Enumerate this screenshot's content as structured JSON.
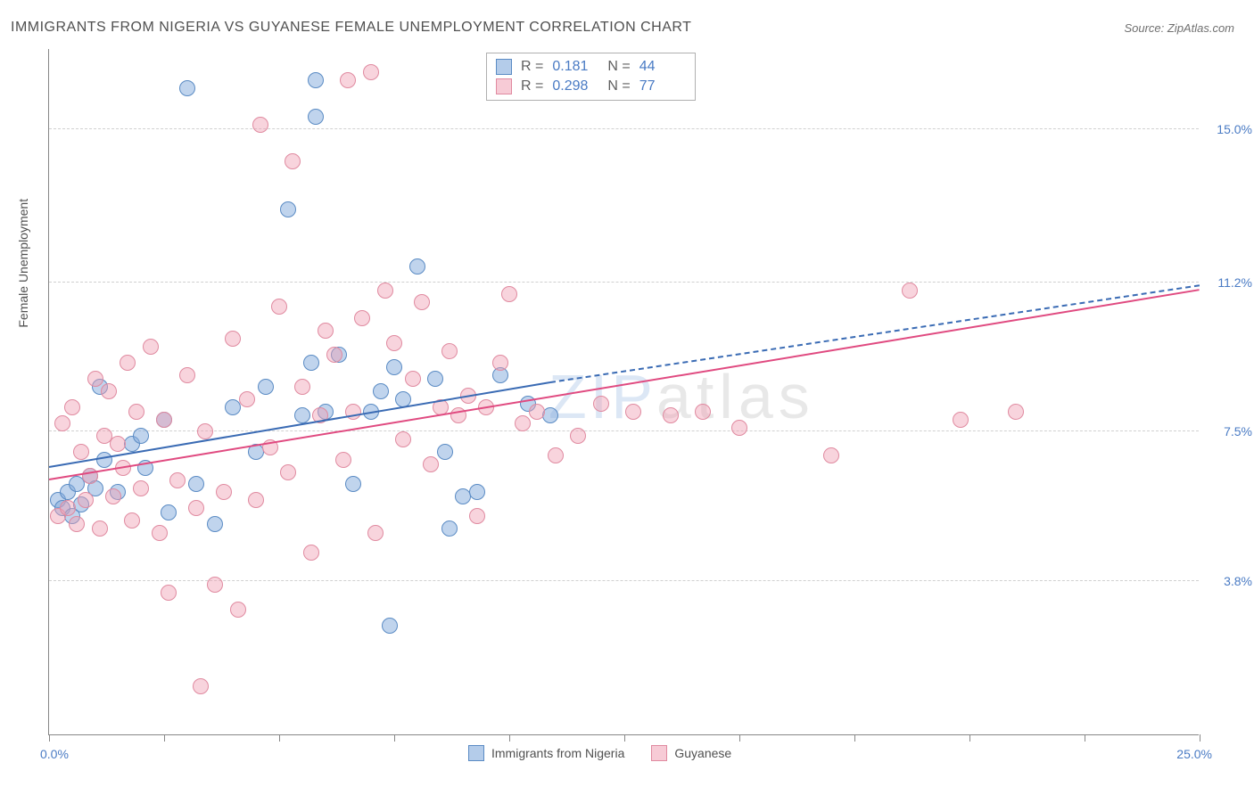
{
  "title": "IMMIGRANTS FROM NIGERIA VS GUYANESE FEMALE UNEMPLOYMENT CORRELATION CHART",
  "source": "Source: ZipAtlas.com",
  "watermark": {
    "z": "ZIP",
    "rest": "atlas"
  },
  "chart": {
    "type": "scatter",
    "background_color": "#ffffff",
    "grid_color": "#d0d0d0",
    "axis_color": "#888888",
    "label_color": "#505050",
    "value_color": "#4a7bc4",
    "ylabel": "Female Unemployment",
    "xlim": [
      0,
      25
    ],
    "ylim": [
      0,
      17
    ],
    "xtick_positions": [
      0,
      2.5,
      5,
      7.5,
      10,
      12.5,
      15,
      17.5,
      20,
      22.5,
      25
    ],
    "xtick_labels": {
      "left": "0.0%",
      "right": "25.0%"
    },
    "ytick_gridlines": [
      3.8,
      7.5,
      11.2,
      15.0
    ],
    "ytick_labels": [
      "3.8%",
      "7.5%",
      "11.2%",
      "15.0%"
    ],
    "label_fontsize": 14,
    "marker_radius": 9,
    "series": [
      {
        "name": "Immigrants from Nigeria",
        "color_fill": "rgba(130,170,220,0.5)",
        "color_stroke": "#5a8bc4",
        "trend_color": "#3a6bb4",
        "R": "0.181",
        "N": "44",
        "trend": {
          "x0": 0,
          "y0": 6.6,
          "x1": 10.9,
          "y1": 8.7,
          "x1_dash": 25,
          "y1_dash": 11.1
        },
        "points": [
          [
            0.2,
            5.8
          ],
          [
            0.3,
            5.6
          ],
          [
            0.4,
            6.0
          ],
          [
            0.5,
            5.4
          ],
          [
            0.6,
            6.2
          ],
          [
            0.7,
            5.7
          ],
          [
            0.9,
            6.4
          ],
          [
            1.0,
            6.1
          ],
          [
            1.1,
            8.6
          ],
          [
            1.2,
            6.8
          ],
          [
            1.5,
            6.0
          ],
          [
            1.8,
            7.2
          ],
          [
            2.0,
            7.4
          ],
          [
            2.1,
            6.6
          ],
          [
            2.5,
            7.8
          ],
          [
            2.6,
            5.5
          ],
          [
            3.0,
            16.0
          ],
          [
            3.2,
            6.2
          ],
          [
            3.6,
            5.2
          ],
          [
            4.0,
            8.1
          ],
          [
            4.5,
            7.0
          ],
          [
            4.7,
            8.6
          ],
          [
            5.2,
            13.0
          ],
          [
            5.5,
            7.9
          ],
          [
            5.7,
            9.2
          ],
          [
            5.8,
            16.2
          ],
          [
            5.8,
            15.3
          ],
          [
            6.0,
            8.0
          ],
          [
            6.3,
            9.4
          ],
          [
            6.6,
            6.2
          ],
          [
            7.0,
            8.0
          ],
          [
            7.2,
            8.5
          ],
          [
            7.4,
            2.7
          ],
          [
            7.5,
            9.1
          ],
          [
            7.7,
            8.3
          ],
          [
            8.0,
            11.6
          ],
          [
            8.4,
            8.8
          ],
          [
            8.6,
            7.0
          ],
          [
            8.7,
            5.1
          ],
          [
            9.0,
            5.9
          ],
          [
            9.3,
            6.0
          ],
          [
            9.8,
            8.9
          ],
          [
            10.4,
            8.2
          ],
          [
            10.9,
            7.9
          ]
        ]
      },
      {
        "name": "Guyanese",
        "color_fill": "rgba(240,160,180,0.45)",
        "color_stroke": "#e08aa0",
        "trend_color": "#e04a80",
        "R": "0.298",
        "N": "77",
        "trend": {
          "x0": 0,
          "y0": 6.3,
          "x1": 25,
          "y1": 11.0
        },
        "points": [
          [
            0.2,
            5.4
          ],
          [
            0.3,
            7.7
          ],
          [
            0.4,
            5.6
          ],
          [
            0.5,
            8.1
          ],
          [
            0.6,
            5.2
          ],
          [
            0.7,
            7.0
          ],
          [
            0.8,
            5.8
          ],
          [
            0.9,
            6.4
          ],
          [
            1.0,
            8.8
          ],
          [
            1.1,
            5.1
          ],
          [
            1.2,
            7.4
          ],
          [
            1.3,
            8.5
          ],
          [
            1.4,
            5.9
          ],
          [
            1.5,
            7.2
          ],
          [
            1.6,
            6.6
          ],
          [
            1.7,
            9.2
          ],
          [
            1.8,
            5.3
          ],
          [
            1.9,
            8.0
          ],
          [
            2.0,
            6.1
          ],
          [
            2.2,
            9.6
          ],
          [
            2.4,
            5.0
          ],
          [
            2.5,
            7.8
          ],
          [
            2.6,
            3.5
          ],
          [
            2.8,
            6.3
          ],
          [
            3.0,
            8.9
          ],
          [
            3.2,
            5.6
          ],
          [
            3.3,
            1.2
          ],
          [
            3.4,
            7.5
          ],
          [
            3.6,
            3.7
          ],
          [
            3.8,
            6.0
          ],
          [
            4.0,
            9.8
          ],
          [
            4.1,
            3.1
          ],
          [
            4.3,
            8.3
          ],
          [
            4.5,
            5.8
          ],
          [
            4.6,
            15.1
          ],
          [
            4.8,
            7.1
          ],
          [
            5.0,
            10.6
          ],
          [
            5.2,
            6.5
          ],
          [
            5.3,
            14.2
          ],
          [
            5.5,
            8.6
          ],
          [
            5.7,
            4.5
          ],
          [
            5.9,
            7.9
          ],
          [
            6.0,
            10.0
          ],
          [
            6.2,
            9.4
          ],
          [
            6.4,
            6.8
          ],
          [
            6.5,
            16.2
          ],
          [
            6.6,
            8.0
          ],
          [
            6.8,
            10.3
          ],
          [
            7.0,
            16.4
          ],
          [
            7.1,
            5.0
          ],
          [
            7.3,
            11.0
          ],
          [
            7.5,
            9.7
          ],
          [
            7.7,
            7.3
          ],
          [
            7.9,
            8.8
          ],
          [
            8.1,
            10.7
          ],
          [
            8.3,
            6.7
          ],
          [
            8.5,
            8.1
          ],
          [
            8.7,
            9.5
          ],
          [
            8.9,
            7.9
          ],
          [
            9.1,
            8.4
          ],
          [
            9.3,
            5.4
          ],
          [
            9.5,
            8.1
          ],
          [
            9.8,
            9.2
          ],
          [
            10.0,
            10.9
          ],
          [
            10.3,
            7.7
          ],
          [
            10.6,
            8.0
          ],
          [
            11.0,
            6.9
          ],
          [
            11.5,
            7.4
          ],
          [
            12.0,
            8.2
          ],
          [
            12.7,
            8.0
          ],
          [
            13.5,
            7.9
          ],
          [
            14.2,
            8.0
          ],
          [
            15.0,
            7.6
          ],
          [
            17.0,
            6.9
          ],
          [
            18.7,
            11.0
          ],
          [
            19.8,
            7.8
          ],
          [
            21.0,
            8.0
          ]
        ]
      }
    ],
    "stats_labels": {
      "R": "R =",
      "N": "N ="
    },
    "bottom_legend": [
      "Immigrants from Nigeria",
      "Guyanese"
    ]
  }
}
